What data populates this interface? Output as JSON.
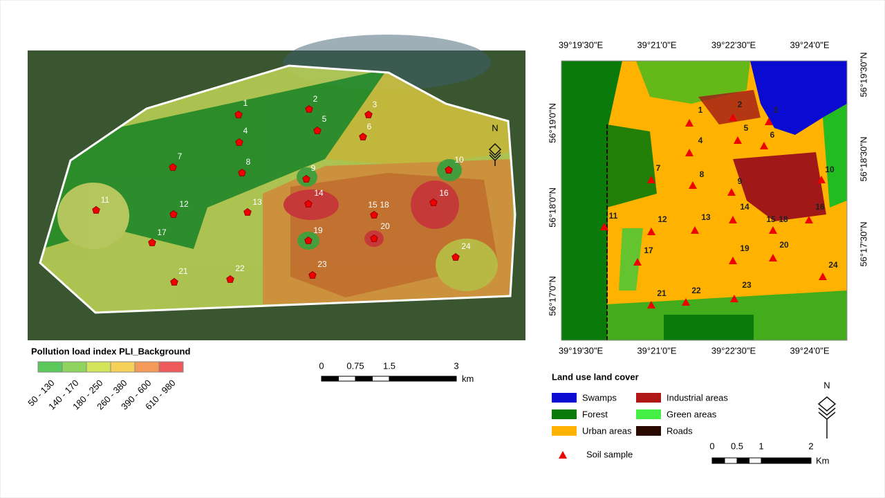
{
  "left_map": {
    "points": [
      "1",
      "2",
      "3",
      "4",
      "5",
      "6",
      "7",
      "8",
      "9",
      "10",
      "11",
      "12",
      "13",
      "14",
      "15",
      "18",
      "16",
      "17",
      "19",
      "20",
      "21",
      "22",
      "23",
      "24"
    ],
    "north": "N",
    "legend": {
      "title": "Pollution load index PLI_Background",
      "classes": [
        "50 - 130",
        "140 - 170",
        "180 - 250",
        "260 - 380",
        "390 - 600",
        "610 - 980"
      ]
    },
    "scale": {
      "ticks": [
        "0",
        "0.75",
        "1.5",
        "3"
      ],
      "unit": "km"
    }
  },
  "right_map": {
    "points": [
      "1",
      "2",
      "3",
      "4",
      "5",
      "6",
      "7",
      "8",
      "9",
      "10",
      "11",
      "12",
      "13",
      "14",
      "15",
      "18",
      "16",
      "17",
      "19",
      "20",
      "21",
      "22",
      "23",
      "24"
    ],
    "north": "N",
    "top_lon": [
      "39°19'30\"E",
      "39°21'0\"E",
      "39°22'30\"E",
      "39°24'0\"E"
    ],
    "bottom_lon": [
      "39°19'30\"E",
      "39°21'0\"E",
      "39°22'30\"E",
      "39°24'0\"E"
    ],
    "left_lat": [
      "56°19'0\"N",
      "56°18'0\"N",
      "56°17'0\"N"
    ],
    "right_lat": [
      "56°19'30\"N",
      "56°18'30\"N",
      "56°17'30\"N"
    ],
    "legend": {
      "title": "Land use land cover",
      "items": [
        "Swamps",
        "Industrial areas",
        "Forest",
        "Green areas",
        "Urban areas",
        "Roads"
      ],
      "sample": "Soil sample"
    },
    "scale": {
      "ticks": [
        "0",
        "0.5",
        "1",
        "2"
      ],
      "unit": "Km"
    }
  }
}
